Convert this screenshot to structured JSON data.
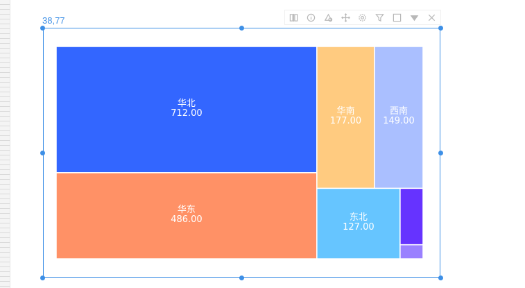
{
  "coords_readout": "38,77",
  "toolbar": {
    "tools": [
      {
        "name": "data-tool-icon"
      },
      {
        "name": "info-icon"
      },
      {
        "name": "style-tool-icon"
      },
      {
        "name": "move-icon"
      },
      {
        "name": "settings-icon"
      },
      {
        "name": "filter-icon"
      },
      {
        "name": "maximize-icon"
      },
      {
        "name": "dropdown-icon"
      },
      {
        "name": "close-icon"
      }
    ],
    "icon_color": "#b8b8b8"
  },
  "selection_color": "#3d8fe6",
  "chart_data": {
    "type": "treemap",
    "items": [
      {
        "name": "华北",
        "value": 712,
        "label": "712.00",
        "color": "#3366ff"
      },
      {
        "name": "华东",
        "value": 486,
        "label": "486.00",
        "color": "#ff9166"
      },
      {
        "name": "华南",
        "value": 177,
        "label": "177.00",
        "color": "#ffcb80"
      },
      {
        "name": "西南",
        "value": 149,
        "label": "149.00",
        "color": "#aabfff"
      },
      {
        "name": "东北",
        "value": 127,
        "label": "127.00",
        "color": "#66c5ff"
      },
      {
        "name": "",
        "value": 28,
        "label": "",
        "color": "#6633ff"
      },
      {
        "name": "",
        "value": 7,
        "label": "",
        "color": "#9a80ff"
      }
    ]
  }
}
